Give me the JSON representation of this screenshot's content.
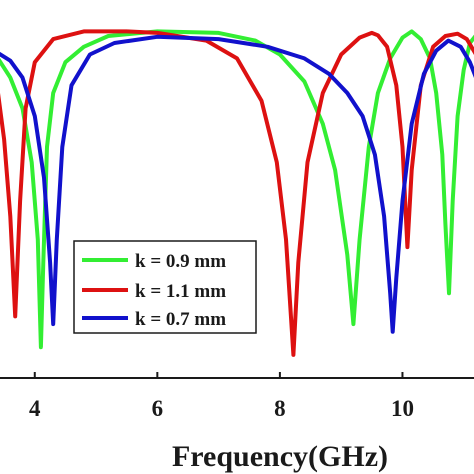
{
  "chart_data": {
    "type": "line",
    "xlabel": "Frequency(GHz)",
    "ylabel": "",
    "title": "",
    "xlim": [
      3.4,
      11.2
    ],
    "ylim": [
      -45,
      2
    ],
    "x_ticks": [
      4,
      6,
      8,
      10
    ],
    "y_ticks": [],
    "grid": false,
    "legend_position": "lower-left",
    "series": [
      {
        "name": "k = 0.9 mm",
        "color": "#33ee33",
        "points": [
          [
            3.4,
            -3.5
          ],
          [
            3.6,
            -6
          ],
          [
            3.8,
            -10
          ],
          [
            3.95,
            -17
          ],
          [
            4.05,
            -27
          ],
          [
            4.1,
            -41
          ],
          [
            4.14,
            -30
          ],
          [
            4.2,
            -15
          ],
          [
            4.3,
            -8
          ],
          [
            4.5,
            -4
          ],
          [
            4.8,
            -2
          ],
          [
            5.2,
            -0.6
          ],
          [
            6,
            0
          ],
          [
            7,
            -0.2
          ],
          [
            7.6,
            -1.2
          ],
          [
            8,
            -3
          ],
          [
            8.4,
            -6.5
          ],
          [
            8.7,
            -12
          ],
          [
            8.9,
            -18
          ],
          [
            9.1,
            -29
          ],
          [
            9.2,
            -38
          ],
          [
            9.3,
            -27
          ],
          [
            9.45,
            -15
          ],
          [
            9.6,
            -8
          ],
          [
            9.8,
            -3.5
          ],
          [
            10.0,
            -0.8
          ],
          [
            10.15,
            0
          ],
          [
            10.3,
            -1
          ],
          [
            10.45,
            -3.5
          ],
          [
            10.55,
            -8
          ],
          [
            10.65,
            -16
          ],
          [
            10.7,
            -25
          ],
          [
            10.76,
            -34
          ],
          [
            10.82,
            -22
          ],
          [
            10.9,
            -11
          ],
          [
            11.0,
            -5
          ],
          [
            11.1,
            -1.5
          ],
          [
            11.2,
            -0.5
          ]
        ]
      },
      {
        "name": "k = 1.1 mm",
        "color": "#dd1111",
        "points": [
          [
            3.4,
            -8
          ],
          [
            3.5,
            -14
          ],
          [
            3.6,
            -24
          ],
          [
            3.68,
            -37
          ],
          [
            3.76,
            -22
          ],
          [
            3.85,
            -10
          ],
          [
            4.0,
            -4
          ],
          [
            4.3,
            -1
          ],
          [
            4.8,
            0
          ],
          [
            5.5,
            0
          ],
          [
            6,
            -0.2
          ],
          [
            6.8,
            -1.2
          ],
          [
            7.3,
            -3.5
          ],
          [
            7.7,
            -9
          ],
          [
            7.95,
            -17
          ],
          [
            8.1,
            -27
          ],
          [
            8.22,
            -42
          ],
          [
            8.3,
            -30
          ],
          [
            8.45,
            -17
          ],
          [
            8.7,
            -8
          ],
          [
            9.0,
            -3
          ],
          [
            9.3,
            -0.8
          ],
          [
            9.5,
            -0.2
          ],
          [
            9.6,
            -0.5
          ],
          [
            9.75,
            -2
          ],
          [
            9.9,
            -7
          ],
          [
            10.0,
            -15
          ],
          [
            10.08,
            -28
          ],
          [
            10.15,
            -18
          ],
          [
            10.3,
            -7
          ],
          [
            10.5,
            -2
          ],
          [
            10.7,
            -0.6
          ],
          [
            10.9,
            -0.3
          ],
          [
            11.05,
            -1
          ],
          [
            11.2,
            -3
          ]
        ]
      },
      {
        "name": "k = 0.7 mm",
        "color": "#1111cc",
        "points": [
          [
            3.4,
            -2.8
          ],
          [
            3.6,
            -3.8
          ],
          [
            3.8,
            -6
          ],
          [
            4.0,
            -11
          ],
          [
            4.15,
            -19
          ],
          [
            4.25,
            -30
          ],
          [
            4.3,
            -38
          ],
          [
            4.36,
            -27
          ],
          [
            4.45,
            -15
          ],
          [
            4.6,
            -7
          ],
          [
            4.9,
            -3
          ],
          [
            5.3,
            -1.5
          ],
          [
            6,
            -0.7
          ],
          [
            7,
            -1
          ],
          [
            7.8,
            -2
          ],
          [
            8.4,
            -3.5
          ],
          [
            8.8,
            -5.5
          ],
          [
            9.1,
            -8
          ],
          [
            9.35,
            -11
          ],
          [
            9.55,
            -16
          ],
          [
            9.7,
            -24
          ],
          [
            9.8,
            -34
          ],
          [
            9.84,
            -39
          ],
          [
            9.9,
            -32
          ],
          [
            10.0,
            -22
          ],
          [
            10.15,
            -12
          ],
          [
            10.35,
            -5.5
          ],
          [
            10.55,
            -2.5
          ],
          [
            10.75,
            -1.2
          ],
          [
            10.95,
            -2
          ],
          [
            11.1,
            -4
          ],
          [
            11.2,
            -6
          ]
        ]
      }
    ]
  }
}
